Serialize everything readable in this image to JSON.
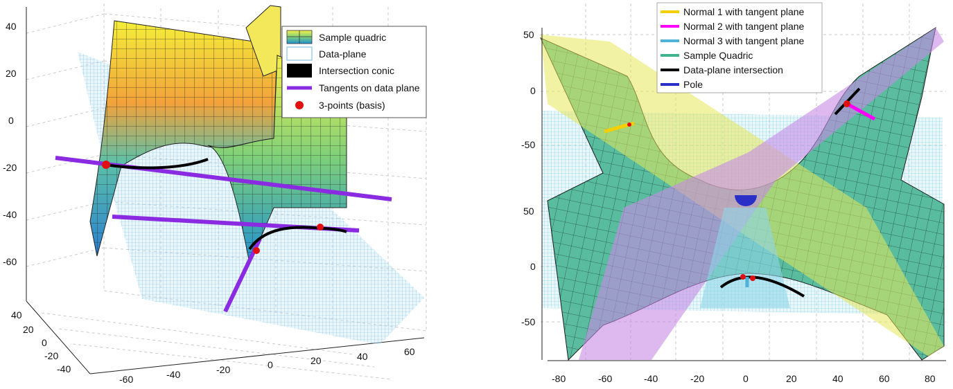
{
  "chart_data": [
    {
      "type": "3d-surface",
      "panel": "left",
      "z_ticks": [
        "40",
        "20",
        "0",
        "-20",
        "-40",
        "-60"
      ],
      "y_ticks": [
        "40",
        "20",
        "0",
        "-20",
        "-40"
      ],
      "x_ticks": [
        "-60",
        "-40",
        "-20",
        "0",
        "20",
        "40",
        "60"
      ],
      "legend": [
        {
          "label": "Sample quadric",
          "color": "#3a9fd0"
        },
        {
          "label": "Data-plane",
          "color": "#9fd3ec"
        },
        {
          "label": "Intersection conic",
          "color": "#000000"
        },
        {
          "label": "Tangents on data plane",
          "color": "#8a2be2"
        },
        {
          "label": "3-points (basis)",
          "color": "#e01010"
        }
      ],
      "legend_position": "top-right",
      "grid": true
    },
    {
      "type": "3d-surface",
      "panel": "right",
      "y_ticks_upper": [
        "50",
        "0",
        "-50"
      ],
      "y_ticks_lower": [
        "50",
        "0",
        "-50"
      ],
      "x_ticks": [
        "-80",
        "-60",
        "-40",
        "-20",
        "0",
        "20",
        "40",
        "60",
        "80"
      ],
      "legend": [
        {
          "label": "Normal 1 with tangent plane",
          "color": "#f5d000"
        },
        {
          "label": "Normal 2 with tangent plane",
          "color": "#ff00ff"
        },
        {
          "label": "Normal 3 with tangent plane",
          "color": "#4fb3d9"
        },
        {
          "label": "Sample Quadric",
          "color": "#3fb38f"
        },
        {
          "label": "Data-plane intersection",
          "color": "#000000"
        },
        {
          "label": "Pole",
          "color": "#2a2fc8"
        }
      ],
      "legend_position": "top",
      "grid": true
    }
  ]
}
